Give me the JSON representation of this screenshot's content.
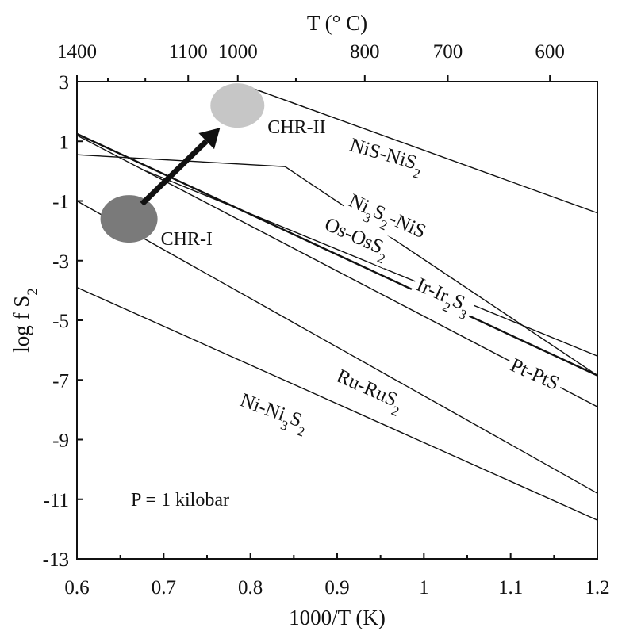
{
  "chart_data": {
    "type": "line",
    "xlabel": "1000/T (K)",
    "ylabel_main": "log f S",
    "ylabel_sub": "2",
    "top_xlabel": "T (° C)",
    "xlim": [
      0.6,
      1.2
    ],
    "ylim": [
      -13,
      3
    ],
    "x_ticks": [
      0.6,
      0.7,
      0.8,
      0.9,
      1,
      1.1,
      1.2
    ],
    "x_tick_labels": [
      "0.6",
      "0.7",
      "0.8",
      "0.9",
      "1",
      "1.1",
      "1.2"
    ],
    "y_ticks": [
      3,
      1,
      -1,
      -3,
      -5,
      -7,
      -9,
      -11,
      -13
    ],
    "y_tick_labels": [
      "3",
      "1",
      "-1",
      "-3",
      "-5",
      "-7",
      "-9",
      "-11",
      "-13"
    ],
    "top_ticks": [
      1400,
      1100,
      1000,
      800,
      700,
      600
    ],
    "top_tick_labels": [
      "1400",
      "1100",
      "1000",
      "800",
      "700",
      "600"
    ],
    "series": [
      {
        "label_parts": [
          [
            "NiS-NiS",
            false
          ],
          [
            "2",
            true
          ]
        ],
        "points": [
          [
            0.8,
            2.8
          ],
          [
            1.2,
            -1.4
          ]
        ],
        "dashed_to": 0.88
      },
      {
        "label_parts": [
          [
            "Ni",
            false
          ],
          [
            "3",
            true
          ],
          [
            "S",
            false
          ],
          [
            "2",
            true
          ],
          [
            "-NiS",
            false
          ]
        ],
        "points": [
          [
            0.6,
            0.55
          ],
          [
            0.84,
            0.15
          ],
          [
            1.2,
            -6.85
          ]
        ]
      },
      {
        "label_parts": [
          [
            "Os-OsS",
            false
          ],
          [
            "2",
            true
          ]
        ],
        "points": [
          [
            0.6,
            1.25
          ],
          [
            1.2,
            -6.85
          ]
        ],
        "thick": true
      },
      {
        "label_parts": [
          [
            "Ir-Ir",
            false
          ],
          [
            "2",
            true
          ],
          [
            "S",
            false
          ],
          [
            "3",
            true
          ]
        ],
        "points": [
          [
            0.68,
            0.0
          ],
          [
            1.2,
            -6.2
          ]
        ]
      },
      {
        "label_parts": [
          [
            "Pt-PtS",
            false
          ]
        ],
        "points": [
          [
            0.6,
            1.2
          ],
          [
            1.2,
            -7.9
          ]
        ]
      },
      {
        "label_parts": [
          [
            "Ru-RuS",
            false
          ],
          [
            "2",
            true
          ]
        ],
        "points": [
          [
            0.6,
            -1.0
          ],
          [
            1.2,
            -10.8
          ]
        ]
      },
      {
        "label_parts": [
          [
            "Ni-Ni",
            false
          ],
          [
            "3",
            true
          ],
          [
            "S",
            false
          ],
          [
            "2",
            true
          ]
        ],
        "points": [
          [
            0.6,
            -3.9
          ],
          [
            1.2,
            -11.7
          ]
        ]
      }
    ],
    "regions": [
      {
        "label": "CHR-I",
        "center": [
          0.66,
          -1.6
        ],
        "color": "#7a7a7a"
      },
      {
        "label": "CHR-II",
        "center": [
          0.785,
          2.2
        ],
        "color": "#c6c6c6"
      }
    ],
    "arrow": {
      "from": [
        0.675,
        -1.1
      ],
      "to": [
        0.765,
        1.45
      ]
    },
    "annotation": "P = 1 kilobar"
  }
}
